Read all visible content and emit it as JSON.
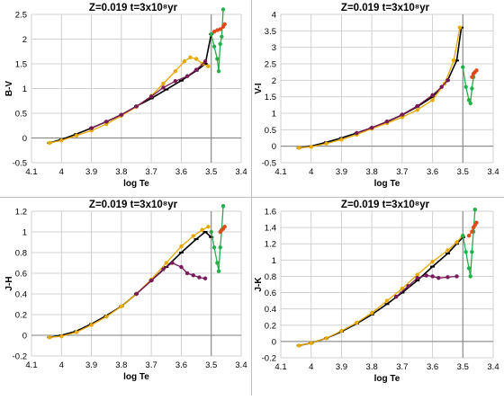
{
  "colors": {
    "background": "#ffffff",
    "grid": "#d0d0d0",
    "axis": "#808080",
    "frame": "#bfbfbf",
    "text": "#000000",
    "series_black": "#000000",
    "series_orange": "#e8a800",
    "series_purple": "#7a1a5a",
    "series_green": "#22b04a",
    "series_red": "#e04a1a"
  },
  "chart_data": [
    {
      "type": "scatter",
      "title": "Z=0.019  t=3x10⁸yr",
      "xlabel": "log Te",
      "ylabel": "B-V",
      "xlim": [
        4.1,
        3.4
      ],
      "xreversed": true,
      "ylim": [
        -0.5,
        2.5
      ],
      "xticks": [
        4.1,
        4.0,
        3.9,
        3.8,
        3.7,
        3.6,
        3.5,
        3.4
      ],
      "xtick_labels": [
        "4.1",
        "4",
        "3.9",
        "3.8",
        "3.7",
        "3.6",
        "3.5",
        "3.4"
      ],
      "yticks": [
        -0.5,
        0,
        0.5,
        1,
        1.5,
        2,
        2.5
      ],
      "ytick_labels": [
        "-0.5",
        "0",
        "0.5",
        "1",
        "1.5",
        "2",
        "2.5"
      ],
      "grid": true,
      "series": [
        {
          "color_key": "series_black",
          "marker": "dash",
          "x": [
            4.04,
            4.0,
            3.95,
            3.9,
            3.85,
            3.8,
            3.75,
            3.7,
            3.65,
            3.6,
            3.55,
            3.52,
            3.5
          ],
          "y": [
            -0.1,
            -0.03,
            0.08,
            0.2,
            0.33,
            0.47,
            0.64,
            0.8,
            0.98,
            1.16,
            1.36,
            1.5,
            2.1
          ]
        },
        {
          "color_key": "series_orange",
          "marker": "circle",
          "x": [
            4.04,
            4.0,
            3.95,
            3.9,
            3.85,
            3.8,
            3.75,
            3.7,
            3.66,
            3.62,
            3.59,
            3.57,
            3.55,
            3.53,
            3.51
          ],
          "y": [
            -0.1,
            -0.05,
            0.05,
            0.15,
            0.28,
            0.45,
            0.63,
            0.85,
            1.1,
            1.35,
            1.55,
            1.63,
            1.6,
            1.5,
            1.45
          ]
        },
        {
          "color_key": "series_purple",
          "marker": "circle",
          "x": [
            3.9,
            3.85,
            3.8,
            3.75,
            3.7,
            3.66,
            3.62,
            3.58,
            3.55,
            3.52
          ],
          "y": [
            0.2,
            0.33,
            0.47,
            0.64,
            0.84,
            1.02,
            1.15,
            1.25,
            1.38,
            1.55
          ]
        },
        {
          "color_key": "series_green",
          "marker": "circle",
          "x": [
            3.5,
            3.49,
            3.48,
            3.475,
            3.47,
            3.465,
            3.46
          ],
          "y": [
            2.1,
            1.85,
            1.6,
            1.35,
            1.9,
            2.05,
            2.6
          ]
        },
        {
          "color_key": "series_red",
          "marker": "circle",
          "x": [
            3.49,
            3.48,
            3.47,
            3.46,
            3.455
          ],
          "y": [
            2.15,
            2.18,
            2.2,
            2.25,
            2.3
          ]
        }
      ]
    },
    {
      "type": "scatter",
      "title": "Z=0.019  t=3x10⁸yr",
      "xlabel": "log Te",
      "ylabel": "V-I",
      "xlim": [
        4.1,
        3.4
      ],
      "xreversed": true,
      "ylim": [
        -0.5,
        4
      ],
      "xticks": [
        4.1,
        4.0,
        3.9,
        3.8,
        3.7,
        3.6,
        3.5,
        3.4
      ],
      "xtick_labels": [
        "4.1",
        "4",
        "3.9",
        "3.8",
        "3.7",
        "3.6",
        "3.5",
        "3.4"
      ],
      "yticks": [
        -0.5,
        0,
        0.5,
        1,
        1.5,
        2,
        2.5,
        3,
        3.5,
        4
      ],
      "ytick_labels": [
        "-0.5",
        "0",
        "0.5",
        "1",
        "1.5",
        "2",
        "2.5",
        "3",
        "3.5",
        "4"
      ],
      "grid": true,
      "series": [
        {
          "color_key": "series_black",
          "marker": "dash",
          "x": [
            4.04,
            4.0,
            3.95,
            3.9,
            3.85,
            3.8,
            3.75,
            3.7,
            3.65,
            3.6,
            3.55,
            3.52,
            3.505
          ],
          "y": [
            -0.05,
            0.0,
            0.12,
            0.25,
            0.4,
            0.56,
            0.74,
            0.95,
            1.2,
            1.5,
            2.0,
            2.6,
            3.6
          ]
        },
        {
          "color_key": "series_orange",
          "marker": "circle",
          "x": [
            4.04,
            4.0,
            3.95,
            3.9,
            3.85,
            3.8,
            3.75,
            3.7,
            3.65,
            3.6,
            3.56,
            3.53,
            3.51
          ],
          "y": [
            -0.05,
            -0.02,
            0.08,
            0.2,
            0.35,
            0.53,
            0.7,
            0.88,
            1.1,
            1.4,
            1.9,
            2.6,
            3.6
          ]
        },
        {
          "color_key": "series_purple",
          "marker": "circle",
          "x": [
            3.85,
            3.8,
            3.75,
            3.7,
            3.65,
            3.6,
            3.57,
            3.55
          ],
          "y": [
            0.4,
            0.56,
            0.75,
            0.96,
            1.22,
            1.55,
            1.8,
            2.0
          ]
        },
        {
          "color_key": "series_green",
          "marker": "circle",
          "x": [
            3.5,
            3.49,
            3.48,
            3.475,
            3.47,
            3.465
          ],
          "y": [
            2.4,
            1.8,
            1.4,
            1.3,
            1.75,
            2.1
          ]
        },
        {
          "color_key": "series_red",
          "marker": "circle",
          "x": [
            3.47,
            3.465,
            3.46,
            3.455
          ],
          "y": [
            2.1,
            2.2,
            2.25,
            2.3
          ]
        }
      ]
    },
    {
      "type": "scatter",
      "title": "Z=0.019  t=3x10⁸yr",
      "xlabel": "log Te",
      "ylabel": "J-H",
      "xlim": [
        4.1,
        3.4
      ],
      "xreversed": true,
      "ylim": [
        -0.2,
        1.2
      ],
      "xticks": [
        4.1,
        4.0,
        3.9,
        3.8,
        3.7,
        3.6,
        3.5,
        3.4
      ],
      "xtick_labels": [
        "4.1",
        "4",
        "3.9",
        "3.8",
        "3.7",
        "3.6",
        "3.5",
        "3.4"
      ],
      "yticks": [
        -0.2,
        0,
        0.2,
        0.4,
        0.6,
        0.8,
        1,
        1.2
      ],
      "ytick_labels": [
        "-0.2",
        "0",
        "0.2",
        "0.4",
        "0.6",
        "0.8",
        "1",
        "1.2"
      ],
      "grid": true,
      "series": [
        {
          "color_key": "series_black",
          "marker": "dash",
          "x": [
            4.04,
            4.0,
            3.95,
            3.9,
            3.85,
            3.8,
            3.75,
            3.7,
            3.65,
            3.6,
            3.55,
            3.52,
            3.5
          ],
          "y": [
            -0.02,
            0.0,
            0.04,
            0.11,
            0.19,
            0.28,
            0.4,
            0.53,
            0.66,
            0.8,
            0.93,
            1.0,
            0.95
          ]
        },
        {
          "color_key": "series_orange",
          "marker": "circle",
          "x": [
            4.04,
            4.0,
            3.95,
            3.9,
            3.85,
            3.8,
            3.75,
            3.7,
            3.65,
            3.6,
            3.56,
            3.53,
            3.51
          ],
          "y": [
            -0.02,
            -0.01,
            0.03,
            0.1,
            0.18,
            0.28,
            0.4,
            0.54,
            0.7,
            0.86,
            0.96,
            1.02,
            1.05
          ]
        },
        {
          "color_key": "series_purple",
          "marker": "circle",
          "x": [
            3.75,
            3.7,
            3.66,
            3.63,
            3.6,
            3.58,
            3.56,
            3.54,
            3.52
          ],
          "y": [
            0.4,
            0.53,
            0.64,
            0.7,
            0.66,
            0.6,
            0.58,
            0.56,
            0.55
          ]
        },
        {
          "color_key": "series_green",
          "marker": "circle",
          "x": [
            3.5,
            3.49,
            3.48,
            3.475,
            3.47,
            3.465,
            3.46
          ],
          "y": [
            1.0,
            0.85,
            0.7,
            0.62,
            0.85,
            1.02,
            1.25
          ]
        },
        {
          "color_key": "series_red",
          "marker": "circle",
          "x": [
            3.47,
            3.465,
            3.46,
            3.455
          ],
          "y": [
            1.0,
            1.02,
            1.03,
            1.05
          ]
        }
      ]
    },
    {
      "type": "scatter",
      "title": "Z=0.019  t=3x10⁸yr",
      "xlabel": "log Te",
      "ylabel": "J-K",
      "xlim": [
        4.1,
        3.4
      ],
      "xreversed": true,
      "ylim": [
        -0.2,
        1.6
      ],
      "xticks": [
        4.1,
        4.0,
        3.9,
        3.8,
        3.7,
        3.6,
        3.5,
        3.4
      ],
      "xtick_labels": [
        "4.1",
        "4",
        "3.9",
        "3.8",
        "3.7",
        "3.6",
        "3.5",
        "3.4"
      ],
      "yticks": [
        -0.2,
        0,
        0.2,
        0.4,
        0.6,
        0.8,
        1,
        1.2,
        1.4,
        1.6
      ],
      "ytick_labels": [
        "-0.2",
        "0",
        "0.2",
        "0.4",
        "0.6",
        "0.8",
        "1",
        "1.2",
        "1.4",
        "1.6"
      ],
      "grid": true,
      "series": [
        {
          "color_key": "series_black",
          "marker": "dash",
          "x": [
            4.04,
            4.0,
            3.95,
            3.9,
            3.85,
            3.8,
            3.75,
            3.7,
            3.65,
            3.6,
            3.55,
            3.52,
            3.5
          ],
          "y": [
            -0.05,
            -0.02,
            0.04,
            0.12,
            0.22,
            0.33,
            0.46,
            0.6,
            0.75,
            0.92,
            1.08,
            1.2,
            1.28
          ]
        },
        {
          "color_key": "series_orange",
          "marker": "circle",
          "x": [
            4.04,
            4.0,
            3.95,
            3.9,
            3.85,
            3.8,
            3.75,
            3.7,
            3.65,
            3.6,
            3.55,
            3.52,
            3.5
          ],
          "y": [
            -0.05,
            -0.02,
            0.04,
            0.13,
            0.23,
            0.35,
            0.5,
            0.65,
            0.82,
            0.98,
            1.12,
            1.22,
            1.3
          ]
        },
        {
          "color_key": "series_purple",
          "marker": "circle",
          "x": [
            3.72,
            3.68,
            3.65,
            3.62,
            3.6,
            3.58,
            3.55,
            3.52
          ],
          "y": [
            0.55,
            0.68,
            0.78,
            0.81,
            0.8,
            0.78,
            0.79,
            0.8
          ]
        },
        {
          "color_key": "series_green",
          "marker": "circle",
          "x": [
            3.5,
            3.49,
            3.48,
            3.475,
            3.47,
            3.465,
            3.46
          ],
          "y": [
            1.3,
            1.1,
            0.9,
            0.8,
            1.1,
            1.35,
            1.62
          ]
        },
        {
          "color_key": "series_red",
          "marker": "circle",
          "x": [
            3.48,
            3.47,
            3.465,
            3.46,
            3.455
          ],
          "y": [
            1.3,
            1.35,
            1.4,
            1.43,
            1.46
          ]
        }
      ]
    }
  ]
}
